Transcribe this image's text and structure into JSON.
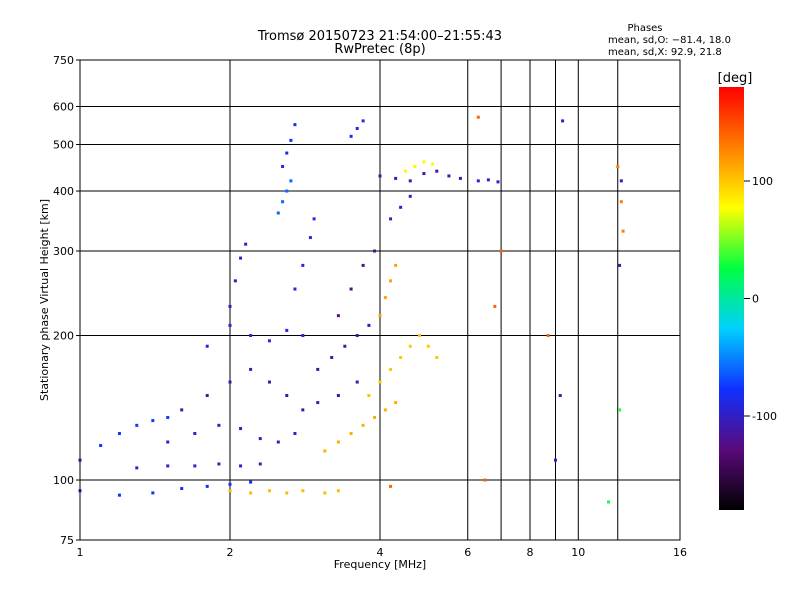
{
  "chart_data": {
    "type": "scatter",
    "title": "Tromsø 20150723 21:54:00–21:55:43",
    "subtitle": "RwPretec (8p)",
    "xlabel": "Frequency [MHz]",
    "ylabel": "Stationary phase Virtual Height [km]",
    "x_scale": "log",
    "y_scale": "log",
    "xlim": [
      1,
      16
    ],
    "ylim": [
      75,
      750
    ],
    "x_ticks": [
      1,
      2,
      4,
      6,
      8,
      10,
      16
    ],
    "x_tick_labels": [
      "1",
      "2",
      "4",
      "6",
      "8",
      "10",
      "16"
    ],
    "x_gridlines": [
      2,
      4,
      6,
      7,
      8,
      9,
      10,
      12
    ],
    "y_ticks": [
      75,
      100,
      200,
      300,
      400,
      500,
      600,
      750
    ],
    "y_tick_labels": [
      "75",
      "100",
      "200",
      "300",
      "400",
      "500",
      "600",
      "750"
    ],
    "grid": true,
    "phase_box": {
      "title": "Phases",
      "line1": "mean, sd,O: −81.4, 18.0",
      "line2": "mean, sd,X:  92.9, 21.8"
    },
    "colorbar": {
      "label": "[deg]",
      "range": [
        -180,
        180
      ],
      "ticks": [
        100,
        0,
        -100
      ],
      "tick_labels": [
        "100",
        "0",
        "-100"
      ],
      "colors": [
        "#000000",
        "#5a0a7a",
        "#1030ff",
        "#00d0ff",
        "#00ff40",
        "#ffff00",
        "#ff8000",
        "#ff0000"
      ]
    },
    "series": [
      {
        "name": "",
        "phase": -80,
        "x": [
          1.0,
          1.2,
          1.4,
          1.6,
          1.8,
          2.0,
          2.2
        ],
        "y": [
          95,
          93,
          94,
          96,
          97,
          98,
          99
        ]
      },
      {
        "name": "",
        "phase": -95,
        "x": [
          1.3,
          1.5,
          1.7,
          1.9,
          2.1,
          2.3
        ],
        "y": [
          106,
          107,
          107,
          108,
          107,
          108
        ]
      },
      {
        "name": "",
        "phase": -75,
        "x": [
          1.0,
          1.1,
          1.2,
          1.3,
          1.4,
          1.5
        ],
        "y": [
          110,
          118,
          125,
          130,
          133,
          135
        ]
      },
      {
        "name": "",
        "phase": -100,
        "x": [
          1.5,
          1.7,
          1.9,
          2.1,
          2.3,
          2.5,
          2.7
        ],
        "y": [
          120,
          125,
          130,
          128,
          122,
          120,
          125
        ]
      },
      {
        "name": "",
        "phase": -110,
        "x": [
          1.6,
          1.8,
          2.0,
          2.2,
          2.4,
          2.6,
          2.8,
          3.0,
          3.3,
          3.6
        ],
        "y": [
          140,
          150,
          160,
          170,
          160,
          150,
          140,
          145,
          150,
          160
        ]
      },
      {
        "name": "",
        "phase": -90,
        "x": [
          1.8,
          2.0,
          2.2,
          2.4,
          2.6,
          2.8
        ],
        "y": [
          190,
          210,
          200,
          195,
          205,
          200
        ]
      },
      {
        "name": "",
        "phase": -100,
        "x": [
          2.0,
          2.05,
          2.1,
          2.15
        ],
        "y": [
          230,
          260,
          290,
          310
        ]
      },
      {
        "name": "",
        "phase": -60,
        "x": [
          2.5,
          2.55,
          2.6,
          2.65
        ],
        "y": [
          360,
          380,
          400,
          420
        ]
      },
      {
        "name": "",
        "phase": -85,
        "x": [
          2.55,
          2.6,
          2.65,
          2.7
        ],
        "y": [
          450,
          480,
          510,
          550
        ]
      },
      {
        "name": "",
        "phase": -90,
        "x": [
          2.7,
          2.8,
          2.9,
          2.95
        ],
        "y": [
          250,
          280,
          320,
          350
        ]
      },
      {
        "name": "",
        "phase": 105,
        "x": [
          2.0,
          2.2,
          2.4,
          2.6,
          2.8,
          3.1,
          3.3
        ],
        "y": [
          95,
          94,
          95,
          94,
          95,
          94,
          95
        ]
      },
      {
        "name": "",
        "phase": -115,
        "x": [
          3.0,
          3.2,
          3.4,
          3.6,
          3.8
        ],
        "y": [
          170,
          180,
          190,
          200,
          210
        ]
      },
      {
        "name": "",
        "phase": -120,
        "x": [
          3.3,
          3.5,
          3.7,
          3.9
        ],
        "y": [
          220,
          250,
          280,
          300
        ]
      },
      {
        "name": "",
        "phase": 110,
        "x": [
          3.1,
          3.3,
          3.5,
          3.7,
          3.9,
          4.1,
          4.3
        ],
        "y": [
          115,
          120,
          125,
          130,
          135,
          140,
          145
        ]
      },
      {
        "name": "",
        "phase": 100,
        "x": [
          3.8,
          4.0,
          4.2,
          4.4,
          4.6,
          4.8,
          5.0,
          5.2
        ],
        "y": [
          150,
          160,
          170,
          180,
          190,
          200,
          190,
          180
        ]
      },
      {
        "name": "",
        "phase": 115,
        "x": [
          4.0,
          4.1,
          4.2,
          4.3
        ],
        "y": [
          220,
          240,
          260,
          280
        ]
      },
      {
        "name": "",
        "phase": -110,
        "x": [
          4.0,
          4.3,
          4.6,
          4.9,
          5.2,
          5.5,
          5.8
        ],
        "y": [
          430,
          425,
          420,
          435,
          440,
          430,
          425
        ]
      },
      {
        "name": "",
        "phase": 80,
        "x": [
          4.5,
          4.7,
          4.9,
          5.1
        ],
        "y": [
          440,
          450,
          460,
          455
        ]
      },
      {
        "name": "",
        "phase": -95,
        "x": [
          6.3,
          6.6,
          6.9
        ],
        "y": [
          420,
          422,
          418
        ]
      },
      {
        "name": "",
        "phase": -85,
        "x": [
          3.5,
          3.6,
          3.7
        ],
        "y": [
          520,
          540,
          560
        ]
      },
      {
        "name": "",
        "phase": -100,
        "x": [
          4.2,
          4.4,
          4.6
        ],
        "y": [
          350,
          370,
          390
        ]
      },
      {
        "name": "",
        "phase": 140,
        "x": [
          4.2,
          6.3,
          6.5,
          6.8,
          7.0,
          8.7
        ],
        "y": [
          97,
          570,
          100,
          230,
          300,
          200
        ]
      },
      {
        "name": "",
        "phase": -100,
        "x": [
          9.0,
          9.2,
          9.3
        ],
        "y": [
          110,
          150,
          560
        ]
      },
      {
        "name": "",
        "phase": 130,
        "x": [
          12.0,
          12.2,
          12.3
        ],
        "y": [
          450,
          380,
          330
        ]
      },
      {
        "name": "",
        "phase": 30,
        "x": [
          11.5,
          12.1
        ],
        "y": [
          90,
          140
        ]
      },
      {
        "name": "",
        "phase": -110,
        "x": [
          12.1,
          12.2
        ],
        "y": [
          280,
          420
        ]
      }
    ]
  }
}
